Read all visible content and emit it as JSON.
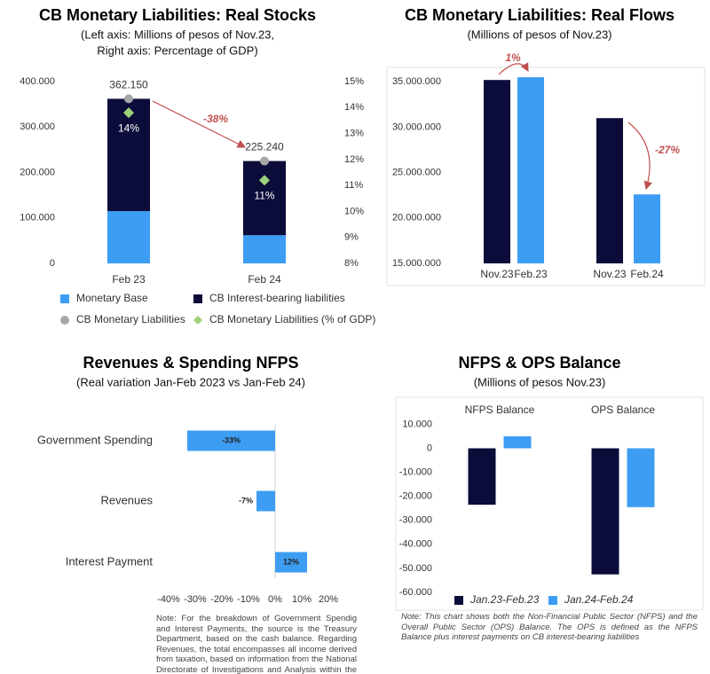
{
  "chart_data": [
    {
      "type": "bar",
      "stacked": true,
      "title": "CB Monetary Liabilities: Real Stocks",
      "subtitle": [
        "(Left axis: Millions of pesos of Nov.23,",
        "Right axis: Percentage of GDP)"
      ],
      "categories": [
        "Feb 23",
        "Feb 24"
      ],
      "series": [
        {
          "name": "Monetary Base",
          "color": "#3d9df3",
          "values": [
            115000,
            62000
          ]
        },
        {
          "name": "CB Interest-bearing liabilities",
          "color": "#0b0c3a",
          "values": [
            247150,
            163240
          ]
        },
        {
          "name": "CB Monetary Liabilities",
          "color": "#a6a6a6",
          "marker": "circle",
          "values": [
            362150,
            225240
          ],
          "value_labels": [
            "362.150",
            "225.240"
          ]
        },
        {
          "name": "CB Monetary Liabilities (% of GDP)",
          "color": "#9bd27a",
          "marker": "diamond",
          "axis": "y2",
          "values": [
            13.8,
            11.2
          ],
          "value_labels": [
            "14%",
            "11%"
          ]
        }
      ],
      "ylim": [
        0,
        400000
      ],
      "yticks": [
        0,
        {
          "value": 100000,
          "label": "100.000"
        },
        {
          "value": 200000,
          "label": "200.000"
        },
        {
          "value": 300000,
          "label": "300.000"
        },
        {
          "value": 400000,
          "label": "400.000"
        }
      ],
      "y2lim": [
        8,
        15
      ],
      "y2ticks": [
        {
          "value": 8,
          "label": "8%"
        },
        {
          "value": 9,
          "label": "9%"
        },
        {
          "value": 10,
          "label": "10%"
        },
        {
          "value": 11,
          "label": "11%"
        },
        {
          "value": 12,
          "label": "12%"
        },
        {
          "value": 13,
          "label": "13%"
        },
        {
          "value": 14,
          "label": "14%"
        },
        {
          "value": 15,
          "label": "15%"
        }
      ],
      "annotations": [
        "-38%"
      ]
    },
    {
      "type": "bar",
      "title": "CB Monetary Liabilities: Real Flows",
      "subtitle": [
        "(Millions of pesos of Nov.23)"
      ],
      "categories": [
        "Nov.23",
        "Feb.23",
        "Nov.23",
        "Feb.24"
      ],
      "values": [
        35200000,
        35500000,
        31000000,
        22600000
      ],
      "colors": [
        "#0b0c3a",
        "#3d9df3",
        "#0b0c3a",
        "#3d9df3"
      ],
      "ylim": [
        15000000,
        36000000
      ],
      "yticks": [
        {
          "value": 15000000,
          "label": "15.000.000"
        },
        {
          "value": 20000000,
          "label": "20.000.000"
        },
        {
          "value": 25000000,
          "label": "25.000.000"
        },
        {
          "value": 30000000,
          "label": "30.000.000"
        },
        {
          "value": 35000000,
          "label": "35.000.000"
        }
      ],
      "annotations": [
        "1%",
        "-27%"
      ]
    },
    {
      "type": "barh",
      "title": "Revenues & Spending NFPS",
      "subtitle": [
        "(Real variation Jan-Feb 2023 vs Jan-Feb 24)"
      ],
      "categories": [
        "Government Spending",
        "Revenues",
        "Interest Payment"
      ],
      "values": [
        -33,
        -7,
        12
      ],
      "value_labels": [
        "-33%",
        "-7%",
        "12%"
      ],
      "color": "#3d9df3",
      "xlim": [
        -40,
        20
      ],
      "xticks": [
        {
          "value": -40,
          "label": "-40%"
        },
        {
          "value": -30,
          "label": "-30%"
        },
        {
          "value": -20,
          "label": "-20%"
        },
        {
          "value": -10,
          "label": "-10%"
        },
        {
          "value": 0,
          "label": "0%"
        },
        {
          "value": 10,
          "label": "10%"
        },
        {
          "value": 20,
          "label": "20%"
        }
      ],
      "note": "Note: For the breakdown of Government Spendig and Interest Payments, the source is the Treasury Department, based on the cash balance. Regarding Revenues, the total encompasses all income derived from taxation, based on information from the National Directorate of Investigations and Analysis within the Ministry of Finance."
    },
    {
      "type": "bar",
      "title": "NFPS & OPS Balance",
      "subtitle": [
        "(Millions of pesos Nov.23)"
      ],
      "categories": [
        "NFPS Balance",
        "OPS Balance"
      ],
      "series": [
        {
          "name": "Jan.23-Feb.23",
          "color": "#0b0c3a",
          "values": [
            -23500,
            -52500
          ]
        },
        {
          "name": "Jan.24-Feb.24",
          "color": "#3d9df3",
          "values": [
            5000,
            -24500
          ]
        }
      ],
      "ylim": [
        -60000,
        12000
      ],
      "yticks": [
        {
          "value": -60000,
          "label": "-60.000"
        },
        {
          "value": -50000,
          "label": "-50.000"
        },
        {
          "value": -40000,
          "label": "-40.000"
        },
        {
          "value": -30000,
          "label": "-30.000"
        },
        {
          "value": -20000,
          "label": "-20.000"
        },
        {
          "value": -10000,
          "label": "-10.000"
        },
        0,
        {
          "value": 10000,
          "label": "10.000"
        }
      ],
      "note": "Note: This chart shows both the Non-Financial Public Sector (NFPS) and the Overall Public Sector (OPS) Balance. The OPS is defined as the NFPS Balance plus interest payments on CB interest-bearing liabilities"
    }
  ]
}
